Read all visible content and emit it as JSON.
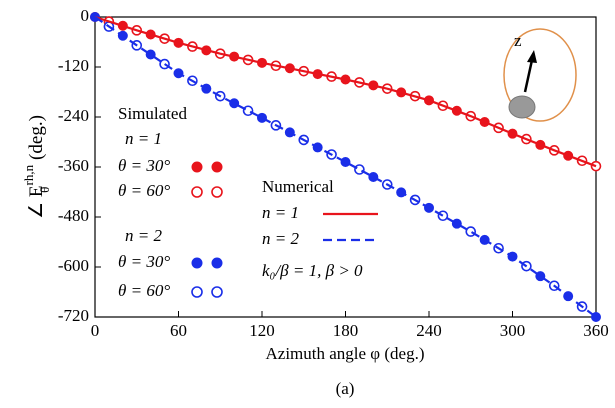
{
  "chart_data": {
    "type": "line",
    "xlabel": "Azimuth angle φ (deg.)",
    "ylabel": {
      "prefix": "∠ E",
      "sub": "θ",
      "sup": "rh,n",
      "unit": " (deg.)"
    },
    "caption": "(a)",
    "annotation": "k₀/β = 1, β > 0",
    "inset_label": "z",
    "legend": {
      "simulated_title": "Simulated",
      "numerical_title": "Numerical",
      "groups": [
        "n = 1",
        "n = 2"
      ]
    },
    "xlim": [
      0,
      360
    ],
    "xticks": [
      0,
      60,
      120,
      180,
      240,
      300,
      360
    ],
    "ylim": [
      -720,
      0
    ],
    "yticks": [
      0,
      -120,
      -240,
      -360,
      -480,
      -600,
      -720
    ],
    "series": [
      {
        "name": "θ = 30°",
        "group": 0,
        "style": "filled",
        "color": "#e8141c",
        "x": [
          0,
          20,
          40,
          60,
          80,
          100,
          120,
          140,
          160,
          180,
          200,
          220,
          240,
          260,
          280,
          300,
          320,
          340
        ],
        "values": [
          0,
          -21,
          -42,
          -62,
          -80,
          -95,
          -110,
          -123,
          -137,
          -150,
          -164,
          -181,
          -200,
          -225,
          -252,
          -280,
          -307,
          -333
        ]
      },
      {
        "name": "θ = 60°",
        "group": 0,
        "style": "open",
        "color": "#e8141c",
        "x": [
          10,
          30,
          50,
          70,
          90,
          110,
          130,
          150,
          170,
          190,
          210,
          230,
          250,
          270,
          290,
          310,
          330,
          350,
          360
        ],
        "values": [
          -11,
          -32,
          -52,
          -71,
          -88,
          -103,
          -117,
          -130,
          -143,
          -157,
          -172,
          -190,
          -213,
          -238,
          -266,
          -293,
          -320,
          -345,
          -358
        ]
      },
      {
        "name": "θ = 30°",
        "group": 1,
        "style": "filled",
        "color": "#1a2ee8",
        "x": [
          0,
          20,
          40,
          60,
          80,
          100,
          120,
          140,
          160,
          180,
          200,
          220,
          240,
          260,
          280,
          300,
          320,
          340,
          360
        ],
        "values": [
          0,
          -45,
          -90,
          -135,
          -172,
          -207,
          -242,
          -277,
          -313,
          -348,
          -384,
          -421,
          -458,
          -496,
          -535,
          -575,
          -622,
          -670,
          -720
        ]
      },
      {
        "name": "θ = 60°",
        "group": 1,
        "style": "open",
        "color": "#1a2ee8",
        "x": [
          10,
          30,
          50,
          70,
          90,
          110,
          130,
          150,
          170,
          190,
          210,
          230,
          250,
          270,
          290,
          310,
          330,
          350
        ],
        "values": [
          -23,
          -68,
          -113,
          -153,
          -190,
          -225,
          -260,
          -295,
          -330,
          -366,
          -402,
          -439,
          -477,
          -515,
          -555,
          -598,
          -645,
          -695
        ]
      },
      {
        "name": "n = 1",
        "style": "solid",
        "color": "#e8141c",
        "x": [
          0,
          30,
          60,
          90,
          120,
          150,
          180,
          210,
          240,
          270,
          300,
          330,
          360
        ],
        "values": [
          0,
          -32,
          -62,
          -88,
          -110,
          -130,
          -150,
          -172,
          -200,
          -238,
          -280,
          -320,
          -358
        ]
      },
      {
        "name": "n = 2",
        "style": "dashed",
        "color": "#1a2ee8",
        "x": [
          0,
          30,
          60,
          90,
          120,
          150,
          180,
          210,
          240,
          270,
          300,
          330,
          360
        ],
        "values": [
          0,
          -68,
          -135,
          -190,
          -242,
          -295,
          -348,
          -402,
          -458,
          -515,
          -575,
          -645,
          -720
        ]
      }
    ]
  }
}
